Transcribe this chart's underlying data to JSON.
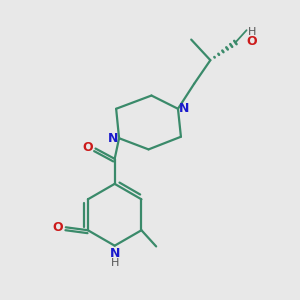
{
  "bg_color": "#e8e8e8",
  "bond_color": "#3a8a6a",
  "n_color": "#1a1acc",
  "o_color": "#cc1a1a",
  "h_color": "#555555",
  "line_width": 1.6,
  "figsize": [
    3.0,
    3.0
  ],
  "dpi": 100,
  "xlim": [
    0,
    10
  ],
  "ylim": [
    0,
    10
  ]
}
